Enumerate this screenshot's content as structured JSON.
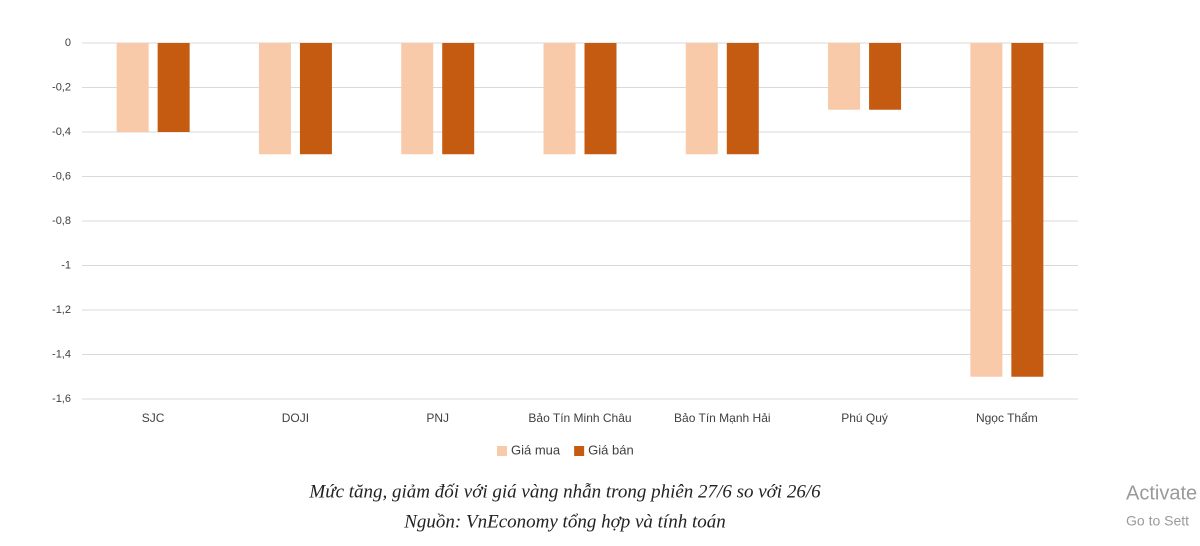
{
  "chart_data": {
    "type": "bar",
    "categories": [
      "SJC",
      "DOJI",
      "PNJ",
      "Bảo Tín Minh Châu",
      "Bảo Tín Mạnh Hải",
      "Phú Quý",
      "Ngọc Thẩm"
    ],
    "series": [
      {
        "name": "Giá mua",
        "color": "#f8caa9",
        "values": [
          -0.4,
          -0.5,
          -0.5,
          -0.5,
          -0.5,
          -0.3,
          -1.5
        ]
      },
      {
        "name": "Giá bán",
        "color": "#c55a11",
        "values": [
          -0.4,
          -0.5,
          -0.5,
          -0.5,
          -0.5,
          -0.3,
          -1.5
        ]
      }
    ],
    "ylim": [
      -1.6,
      0
    ],
    "yticks": [
      0,
      {
        "value": -0.2,
        "label": "-0,2"
      },
      {
        "value": -0.4,
        "label": "-0,4"
      },
      {
        "value": -0.6,
        "label": "-0,6"
      },
      {
        "value": -0.8,
        "label": "-0,8"
      },
      -1,
      {
        "value": -1.2,
        "label": "-1,2"
      },
      {
        "value": -1.4,
        "label": "-1,4"
      },
      {
        "value": -1.6,
        "label": "-1,6"
      }
    ],
    "grid": true,
    "legend": "bottom",
    "caption": [
      "Mức tăng, giảm đối với giá vàng nhẫn trong phiên 27/6 so với 26/6",
      "Nguồn: VnEconomy tổng hợp và tính toán"
    ]
  },
  "watermark": [
    "Activate",
    "Go to Sett"
  ]
}
